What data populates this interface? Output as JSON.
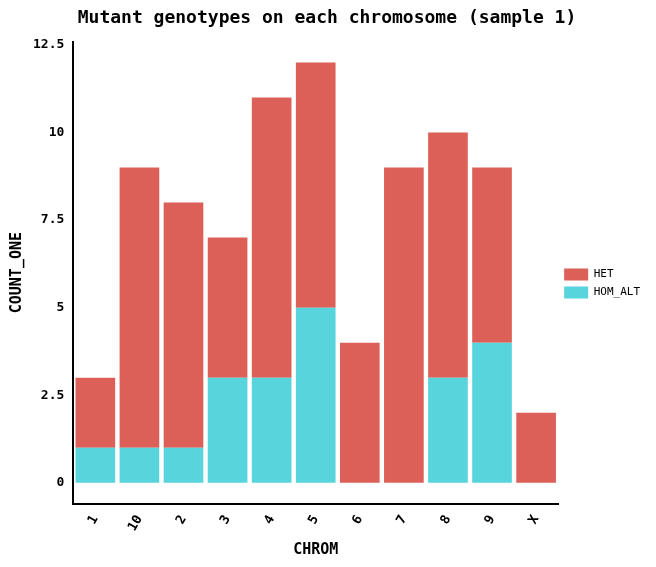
{
  "chart_data": {
    "type": "bar",
    "title": "Mutant genotypes on each chromosome (sample 1)",
    "x_label": "CHROM",
    "y_label": "COUNT_ONE",
    "categories": [
      "1",
      "10",
      "2",
      "3",
      "4",
      "5",
      "6",
      "7",
      "8",
      "9",
      "X"
    ],
    "series": [
      {
        "name": "HET",
        "color": "#dc6057",
        "values": [
          2,
          8,
          7,
          4,
          8,
          7,
          4,
          9,
          7,
          5,
          2
        ]
      },
      {
        "name": "HOM_ALT",
        "color": "#57d4dc",
        "values": [
          1,
          1,
          1,
          3,
          3,
          5,
          0,
          0,
          3,
          4,
          0
        ]
      }
    ],
    "stacked": true,
    "ylim": [
      -0.6,
      12.6
    ],
    "yticks": [
      0,
      2.5,
      5,
      7.5,
      10,
      12.5
    ],
    "grid": false,
    "legend": "right"
  }
}
